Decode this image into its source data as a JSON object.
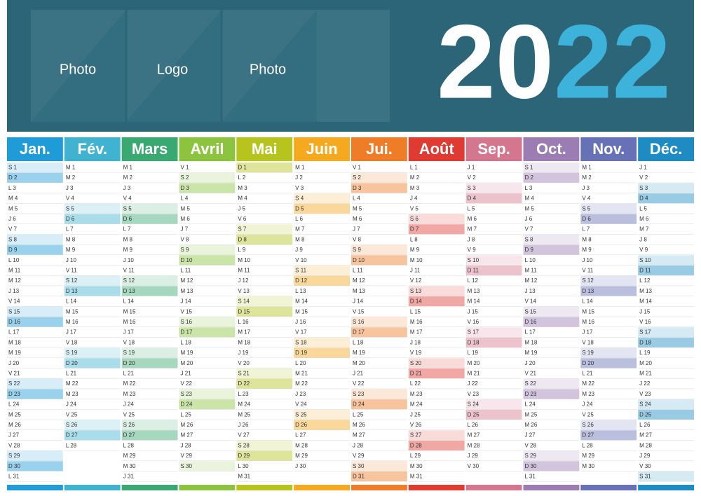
{
  "header": {
    "labels": [
      "Photo",
      "Logo",
      "Photo"
    ],
    "year": [
      "20",
      "22"
    ]
  },
  "months": [
    {
      "name": "Jan.",
      "color": "#1f9bd7",
      "days": [
        "S 1",
        "D 2",
        "L 3",
        "M 4",
        "M 5",
        "J 6",
        "V 7",
        "S 8",
        "D 9",
        "L 10",
        "M 11",
        "M 12",
        "J 13",
        "V 14",
        "S 15",
        "D 16",
        "L 17",
        "M 18",
        "M 19",
        "J 20",
        "V 21",
        "S 22",
        "D 23",
        "L 24",
        "M 25",
        "M 26",
        "J 27",
        "V 28",
        "S 29",
        "D 30",
        "L 31"
      ]
    },
    {
      "name": "Fév.",
      "color": "#3fb3cf",
      "days": [
        "M 1",
        "M 2",
        "J 3",
        "V 4",
        "S 5",
        "D 6",
        "L 7",
        "M 8",
        "M 9",
        "J 10",
        "V 11",
        "S 12",
        "D 13",
        "L 14",
        "M 15",
        "M 16",
        "J 17",
        "V 18",
        "S 19",
        "D 20",
        "L 21",
        "M 22",
        "M 23",
        "J 24",
        "V 25",
        "S 26",
        "D 27",
        "L 28"
      ]
    },
    {
      "name": "Mars",
      "color": "#3aa971",
      "days": [
        "M 1",
        "M 2",
        "J 3",
        "V 4",
        "S 5",
        "D 6",
        "L 7",
        "M 8",
        "M 9",
        "J 10",
        "V 11",
        "S 12",
        "D 13",
        "L 14",
        "M 15",
        "M 16",
        "J 17",
        "V 18",
        "S 19",
        "D 20",
        "L 21",
        "M 22",
        "M 23",
        "J 24",
        "V 25",
        "S 26",
        "D 27",
        "L 28",
        "M 29",
        "M 30",
        "J 31"
      ]
    },
    {
      "name": "Avril",
      "color": "#8cc43f",
      "days": [
        "V 1",
        "S 2",
        "D 3",
        "L 4",
        "M 5",
        "M 6",
        "J 7",
        "V 8",
        "S 9",
        "D 10",
        "L 11",
        "M 12",
        "M 13",
        "J 14",
        "V 15",
        "S 16",
        "D 17",
        "L 18",
        "M 19",
        "M 20",
        "J 21",
        "V 22",
        "S 23",
        "D 24",
        "L 25",
        "M 26",
        "M 27",
        "J 28",
        "V 29",
        "S 30"
      ]
    },
    {
      "name": "Mai",
      "color": "#b6c41d",
      "days": [
        "D 1",
        "L 2",
        "M 3",
        "M 4",
        "J 5",
        "V 6",
        "S 7",
        "D 8",
        "L 9",
        "M 10",
        "M 11",
        "J 12",
        "V 13",
        "S 14",
        "D 15",
        "L 16",
        "M 17",
        "M 18",
        "J 19",
        "V 20",
        "S 21",
        "D 22",
        "L 23",
        "M 24",
        "M 25",
        "J 26",
        "V 27",
        "S 28",
        "D 29",
        "L 30",
        "M 31"
      ]
    },
    {
      "name": "Juin",
      "color": "#f5a91f",
      "days": [
        "M 1",
        "J 2",
        "V 3",
        "S 4",
        "D 5",
        "L 6",
        "M 7",
        "M 8",
        "J 9",
        "V 10",
        "S 11",
        "D 12",
        "L 13",
        "M 14",
        "M 15",
        "J 16",
        "V 17",
        "S 18",
        "D 19",
        "L 20",
        "M 21",
        "M 22",
        "J 23",
        "V 24",
        "S 25",
        "D 26",
        "L 27",
        "M 28",
        "M 29",
        "J 30"
      ]
    },
    {
      "name": "Jui.",
      "color": "#ef7d27",
      "days": [
        "V 1",
        "S 2",
        "D 3",
        "L 4",
        "M 5",
        "M 6",
        "J 7",
        "V 8",
        "S 9",
        "D 10",
        "L 11",
        "M 12",
        "M 13",
        "J 14",
        "V 15",
        "S 16",
        "D 17",
        "L 18",
        "M 19",
        "M 20",
        "J 21",
        "V 22",
        "S 23",
        "D 24",
        "L 25",
        "M 26",
        "M 27",
        "J 28",
        "V 29",
        "S 30",
        "D 31"
      ]
    },
    {
      "name": "Août",
      "color": "#df3b33",
      "days": [
        "L 1",
        "M 2",
        "M 3",
        "J 4",
        "V 5",
        "S 6",
        "D 7",
        "L 8",
        "M 9",
        "M 10",
        "J 11",
        "V 12",
        "S 13",
        "D 14",
        "L 15",
        "M 16",
        "M 17",
        "J 18",
        "V 19",
        "S 20",
        "D 21",
        "L 22",
        "M 23",
        "M 24",
        "J 25",
        "V 26",
        "S 27",
        "D 28",
        "L 29",
        "M 30",
        "M 31"
      ]
    },
    {
      "name": "Sep.",
      "color": "#d4778e",
      "days": [
        "J 1",
        "V 2",
        "S 3",
        "D 4",
        "L 5",
        "M 6",
        "M 7",
        "J 8",
        "V 9",
        "S 10",
        "D 11",
        "L 12",
        "M 13",
        "M 14",
        "J 15",
        "V 16",
        "S 17",
        "D 18",
        "L 19",
        "M 20",
        "M 21",
        "J 22",
        "V 23",
        "S 24",
        "D 25",
        "L 26",
        "M 27",
        "M 28",
        "J 29",
        "V 30"
      ]
    },
    {
      "name": "Oct.",
      "color": "#9b7db4",
      "days": [
        "S 1",
        "D 2",
        "L 3",
        "M 4",
        "M 5",
        "J 6",
        "V 7",
        "S 8",
        "D 9",
        "L 10",
        "M 11",
        "M 12",
        "J 13",
        "V 14",
        "S 15",
        "D 16",
        "L 17",
        "M 18",
        "M 19",
        "J 20",
        "V 21",
        "S 22",
        "D 23",
        "L 24",
        "M 25",
        "M 26",
        "J 27",
        "V 28",
        "S 29",
        "D 30",
        "L 31"
      ]
    },
    {
      "name": "Nov.",
      "color": "#6672b5",
      "days": [
        "M 1",
        "M 2",
        "J 3",
        "V 4",
        "S 5",
        "D 6",
        "L 7",
        "M 8",
        "M 9",
        "J 10",
        "V 11",
        "S 12",
        "D 13",
        "L 14",
        "M 15",
        "M 16",
        "J 17",
        "V 18",
        "S 19",
        "D 20",
        "L 21",
        "M 22",
        "M 23",
        "J 24",
        "V 25",
        "S 26",
        "D 27",
        "L 28",
        "M 29",
        "M 30"
      ]
    },
    {
      "name": "Déc.",
      "color": "#1e8cc3",
      "days": [
        "J 1",
        "V 2",
        "S 3",
        "D 4",
        "L 5",
        "M 6",
        "M 7",
        "J 8",
        "V 9",
        "S 10",
        "D 11",
        "L 12",
        "M 13",
        "M 14",
        "J 15",
        "V 16",
        "S 17",
        "D 18",
        "L 19",
        "M 20",
        "M 21",
        "J 22",
        "V 23",
        "S 24",
        "D 25",
        "L 26",
        "M 27",
        "M 28",
        "J 29",
        "V 30",
        "S 31"
      ]
    }
  ]
}
